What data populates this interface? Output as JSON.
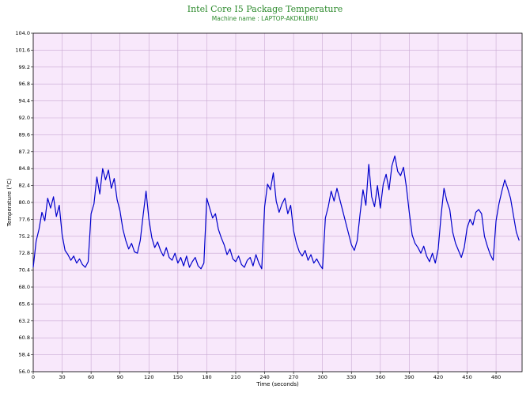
{
  "chart_data": {
    "type": "line",
    "title": "Intel Core I5 Package Temperature",
    "subtitle": "Machine name : LAPTOP-AKDKLBRU",
    "x_label": "Time (seconds)",
    "y_label": "Temperature (°C)",
    "color": "#0000cc",
    "background": "#f8e8fb",
    "grid": true,
    "xlim": [
      0,
      507
    ],
    "xticks": [
      0,
      30,
      60,
      90,
      120,
      150,
      180,
      210,
      240,
      270,
      300,
      330,
      360,
      390,
      420,
      450,
      480
    ],
    "ylim": [
      56,
      104
    ],
    "yticks": [
      {
        "value": 56,
        "label": "56.0"
      },
      58.4,
      60.8,
      63.2,
      65.6,
      {
        "value": 68,
        "label": "68.0"
      },
      70.4,
      72.8,
      75.2,
      77.6,
      {
        "value": 80,
        "label": "80.0"
      },
      82.4,
      84.8,
      87.2,
      89.6,
      {
        "value": 92,
        "label": "92.0"
      },
      94.4,
      96.8,
      99.2,
      101.6,
      {
        "value": 104,
        "label": "104.0"
      }
    ],
    "x": [
      0,
      3,
      6,
      9,
      12,
      15,
      18,
      21,
      24,
      27,
      30,
      33,
      36,
      39,
      42,
      45,
      48,
      51,
      54,
      57,
      60,
      63,
      66,
      69,
      72,
      75,
      78,
      81,
      84,
      87,
      90,
      93,
      96,
      99,
      102,
      105,
      108,
      111,
      114,
      117,
      120,
      123,
      126,
      129,
      132,
      135,
      138,
      141,
      144,
      147,
      150,
      153,
      156,
      159,
      162,
      165,
      168,
      171,
      174,
      177,
      180,
      183,
      186,
      189,
      192,
      195,
      198,
      201,
      204,
      207,
      210,
      213,
      216,
      219,
      222,
      225,
      228,
      231,
      234,
      237,
      240,
      243,
      246,
      249,
      252,
      255,
      258,
      261,
      264,
      267,
      270,
      273,
      276,
      279,
      282,
      285,
      288,
      291,
      294,
      297,
      300,
      303,
      306,
      309,
      312,
      315,
      318,
      321,
      324,
      327,
      330,
      333,
      336,
      339,
      342,
      345,
      348,
      351,
      354,
      357,
      360,
      363,
      366,
      369,
      372,
      375,
      378,
      381,
      384,
      387,
      390,
      393,
      396,
      399,
      402,
      405,
      408,
      411,
      414,
      417,
      420,
      423,
      426,
      429,
      432,
      435,
      438,
      441,
      444,
      447,
      450,
      453,
      456,
      459,
      462,
      465,
      468,
      471,
      474,
      477,
      480,
      483,
      486,
      489,
      492,
      495,
      498,
      501,
      504
    ],
    "values": [
      70.8,
      74.5,
      76.2,
      78.6,
      77.4,
      80.6,
      79.2,
      80.8,
      78.0,
      79.6,
      75.4,
      73.2,
      72.6,
      71.8,
      72.4,
      71.4,
      72.0,
      71.2,
      70.8,
      71.6,
      78.4,
      79.8,
      83.6,
      81.2,
      84.8,
      83.2,
      84.6,
      82.0,
      83.4,
      80.4,
      78.8,
      76.2,
      74.6,
      73.4,
      74.2,
      73.0,
      72.8,
      74.6,
      78.2,
      81.6,
      77.6,
      75.0,
      73.6,
      74.4,
      73.2,
      72.4,
      73.6,
      72.2,
      71.8,
      72.8,
      71.4,
      72.2,
      71.0,
      72.4,
      70.8,
      71.6,
      72.2,
      71.0,
      70.6,
      71.4,
      80.6,
      79.2,
      77.8,
      78.4,
      76.2,
      75.0,
      74.0,
      72.6,
      73.4,
      72.0,
      71.6,
      72.4,
      71.2,
      70.8,
      71.8,
      72.2,
      71.0,
      72.6,
      71.4,
      70.6,
      79.4,
      82.6,
      81.8,
      84.2,
      80.2,
      78.6,
      79.8,
      80.6,
      78.4,
      79.6,
      76.0,
      74.2,
      73.0,
      72.4,
      73.2,
      71.8,
      72.6,
      71.4,
      72.0,
      71.2,
      70.6,
      77.8,
      79.4,
      81.6,
      80.2,
      82.0,
      80.4,
      78.8,
      77.2,
      75.6,
      74.0,
      73.2,
      74.6,
      78.4,
      81.8,
      79.6,
      85.4,
      80.8,
      79.4,
      82.4,
      79.2,
      82.6,
      84.0,
      81.8,
      85.2,
      86.6,
      84.4,
      83.8,
      85.0,
      82.2,
      78.6,
      75.4,
      74.2,
      73.6,
      72.8,
      73.8,
      72.4,
      71.6,
      72.8,
      71.4,
      73.4,
      78.2,
      82.0,
      80.2,
      79.0,
      75.8,
      74.2,
      73.2,
      72.2,
      73.6,
      76.4,
      77.6,
      76.8,
      78.6,
      79.0,
      78.4,
      75.2,
      73.8,
      72.6,
      71.8,
      77.4,
      79.8,
      81.6,
      83.2,
      82.0,
      80.6,
      78.2,
      75.8,
      74.6
    ]
  }
}
